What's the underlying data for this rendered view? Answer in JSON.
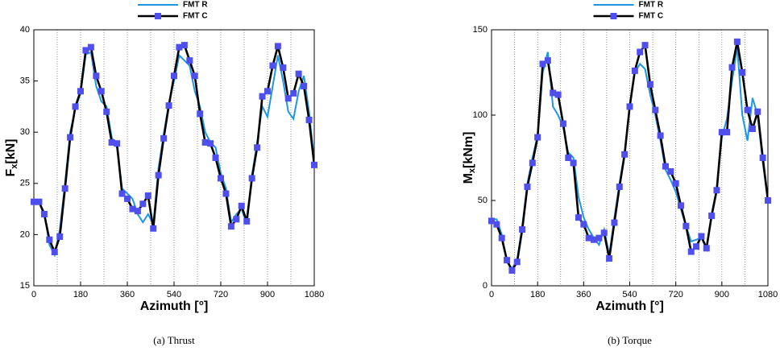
{
  "chart_data": [
    {
      "type": "line",
      "caption": "(a) Thrust",
      "xlabel": "Azimuth [°]",
      "ylabel": "F",
      "ylabel_sub": "x",
      "ylabel_unit": "[kN]",
      "xlim": [
        0,
        1080
      ],
      "xticks": [
        0,
        180,
        360,
        540,
        720,
        900,
        1080
      ],
      "xgrid": [
        90,
        180,
        270,
        360,
        450,
        540,
        630,
        720,
        810,
        900,
        990
      ],
      "ylim": [
        15,
        40
      ],
      "yticks": [
        15,
        20,
        25,
        30,
        35,
        40
      ],
      "legend": "top",
      "x": [
        0,
        20,
        40,
        60,
        80,
        100,
        120,
        140,
        160,
        180,
        200,
        220,
        240,
        260,
        280,
        300,
        320,
        340,
        360,
        380,
        400,
        420,
        440,
        460,
        480,
        500,
        520,
        540,
        560,
        580,
        600,
        620,
        640,
        660,
        680,
        700,
        720,
        740,
        760,
        780,
        800,
        820,
        840,
        860,
        880,
        900,
        920,
        940,
        960,
        980,
        1000,
        1020,
        1040,
        1060,
        1080
      ],
      "series": [
        {
          "name": "FMT R",
          "color": "#1f95e6",
          "marker": false,
          "values": [
            23.2,
            23.1,
            22.2,
            19.0,
            18.0,
            20.5,
            25.0,
            30.0,
            32.3,
            33.8,
            37.6,
            37.8,
            34.5,
            33.0,
            32.5,
            29.5,
            28.5,
            24.5,
            24.0,
            23.5,
            22.0,
            21.2,
            22.0,
            21.0,
            26.5,
            29.8,
            32.8,
            35.0,
            37.5,
            37.0,
            36.5,
            34.0,
            32.5,
            30.0,
            29.0,
            28.5,
            26.0,
            24.5,
            21.2,
            22.0,
            22.5,
            21.0,
            25.8,
            29.0,
            32.5,
            31.5,
            34.5,
            37.5,
            35.0,
            32.0,
            31.3,
            34.0,
            35.5,
            32.0,
            27.2
          ]
        },
        {
          "name": "FMT C",
          "color": "#000000",
          "marker_color": "#4f4fee",
          "marker": true,
          "values": [
            23.2,
            23.2,
            22.0,
            19.5,
            18.3,
            19.8,
            24.5,
            29.5,
            32.5,
            34.0,
            38.0,
            38.3,
            35.5,
            34.0,
            32.0,
            29.0,
            28.9,
            24.0,
            23.5,
            22.5,
            22.3,
            23.0,
            23.8,
            20.6,
            25.8,
            29.4,
            32.6,
            35.5,
            38.3,
            38.5,
            37.0,
            35.5,
            31.8,
            29.0,
            28.9,
            27.5,
            25.5,
            24.0,
            20.8,
            21.5,
            22.8,
            21.3,
            25.5,
            28.5,
            33.5,
            34.0,
            36.5,
            38.4,
            36.3,
            33.3,
            33.8,
            35.7,
            34.5,
            31.2,
            26.8
          ]
        }
      ]
    },
    {
      "type": "line",
      "caption": "(b) Torque",
      "xlabel": "Azimuth [°]",
      "ylabel": "M",
      "ylabel_sub": "x",
      "ylabel_unit": "[kNm]",
      "xlim": [
        0,
        1080
      ],
      "xticks": [
        0,
        180,
        360,
        540,
        720,
        900,
        1080
      ],
      "xgrid": [
        90,
        180,
        270,
        360,
        450,
        540,
        630,
        720,
        810,
        900,
        990
      ],
      "ylim": [
        0,
        150
      ],
      "yticks": [
        0,
        50,
        100,
        150
      ],
      "legend": "top",
      "x": [
        0,
        20,
        40,
        60,
        80,
        100,
        120,
        140,
        160,
        180,
        200,
        220,
        240,
        260,
        280,
        300,
        320,
        340,
        360,
        380,
        400,
        420,
        440,
        460,
        480,
        500,
        520,
        540,
        560,
        580,
        600,
        620,
        640,
        660,
        680,
        700,
        720,
        740,
        760,
        780,
        800,
        820,
        840,
        860,
        880,
        900,
        920,
        940,
        960,
        980,
        1000,
        1020,
        1040,
        1060,
        1080
      ],
      "series": [
        {
          "name": "FMT R",
          "color": "#1f95e6",
          "marker": false,
          "values": [
            39,
            39,
            30,
            14,
            10,
            15,
            35,
            60,
            75,
            88,
            125,
            137,
            105,
            100,
            93,
            78,
            75,
            52,
            40,
            33,
            28,
            24,
            33,
            18,
            40,
            60,
            78,
            105,
            125,
            130,
            127,
            112,
            100,
            85,
            68,
            62,
            55,
            45,
            35,
            26,
            27,
            28,
            22,
            42,
            57,
            87,
            98,
            120,
            140,
            100,
            85,
            110,
            100,
            72,
            50
          ]
        },
        {
          "name": "FMT C",
          "color": "#000000",
          "marker_color": "#4f4fee",
          "marker": true,
          "values": [
            38,
            36,
            28,
            15,
            9,
            14,
            33,
            58,
            72,
            87,
            130,
            132,
            113,
            112,
            95,
            75,
            72,
            40,
            36,
            28,
            27,
            28,
            31,
            16,
            37,
            58,
            77,
            105,
            126,
            137,
            141,
            118,
            103,
            88,
            70,
            67,
            60,
            47,
            35,
            20,
            23,
            29,
            22,
            41,
            56,
            90,
            90,
            128,
            143,
            125,
            103,
            92,
            102,
            75,
            50
          ]
        }
      ]
    }
  ]
}
